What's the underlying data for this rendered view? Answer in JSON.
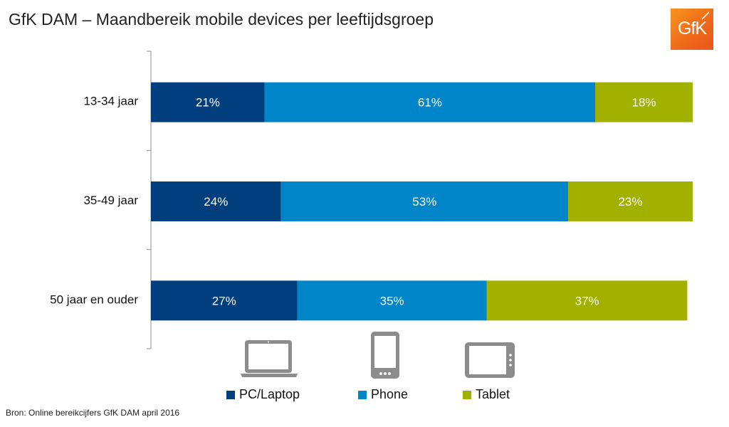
{
  "page": {
    "title": "GfK DAM – Maandbereik mobile devices per leeftijdsgroep",
    "logo_text": "GfK",
    "source": "Bron: Online bereikcijfers GfK DAM april 2016"
  },
  "colors": {
    "pc_laptop": "#003e7e",
    "phone": "#0085c8",
    "tablet": "#a2b000",
    "axis": "#8c8c8c",
    "icon": "#8c8c8c",
    "logo": "#ef6a1a"
  },
  "icons": [
    "laptop-icon",
    "phone-icon",
    "tablet-icon"
  ],
  "chart_data": {
    "type": "bar",
    "orientation": "horizontal",
    "stacked": true,
    "categories": [
      "13-34 jaar",
      "35-49 jaar",
      "50 jaar en ouder"
    ],
    "series": [
      {
        "name": "PC/Laptop",
        "values": [
          21,
          24,
          27
        ],
        "labels": [
          "21%",
          "24%",
          "27%"
        ]
      },
      {
        "name": "Phone",
        "values": [
          61,
          53,
          35
        ],
        "labels": [
          "61%",
          "53%",
          "35%"
        ]
      },
      {
        "name": "Tablet",
        "values": [
          18,
          23,
          37
        ],
        "labels": [
          "18%",
          "23%",
          "37%"
        ]
      }
    ],
    "xlim": [
      0,
      100
    ],
    "grid": false,
    "legend": "bottom"
  }
}
